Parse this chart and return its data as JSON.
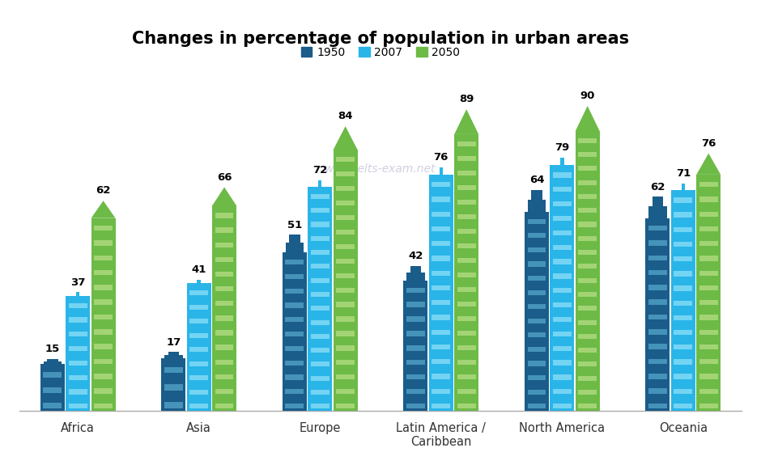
{
  "title": "Changes in percentage of population in urban areas",
  "categories": [
    "Africa",
    "Asia",
    "Europe",
    "Latin America /\nCaribbean",
    "North America",
    "Oceania"
  ],
  "years": [
    "1950",
    "2007",
    "2050"
  ],
  "values": {
    "1950": [
      15,
      17,
      51,
      42,
      64,
      62
    ],
    "2007": [
      37,
      41,
      72,
      76,
      79,
      71
    ],
    "2050": [
      62,
      66,
      84,
      89,
      90,
      76
    ]
  },
  "colors": {
    "1950": "#1a5c8a",
    "2007": "#29b5e8",
    "2050": "#6dba47"
  },
  "window_colors": {
    "1950": "#4a9abf",
    "2007": "#7dd8f5",
    "2050": "#aad87a"
  },
  "watermark": "www.ielts-exam.net",
  "bar_width": 0.2
}
